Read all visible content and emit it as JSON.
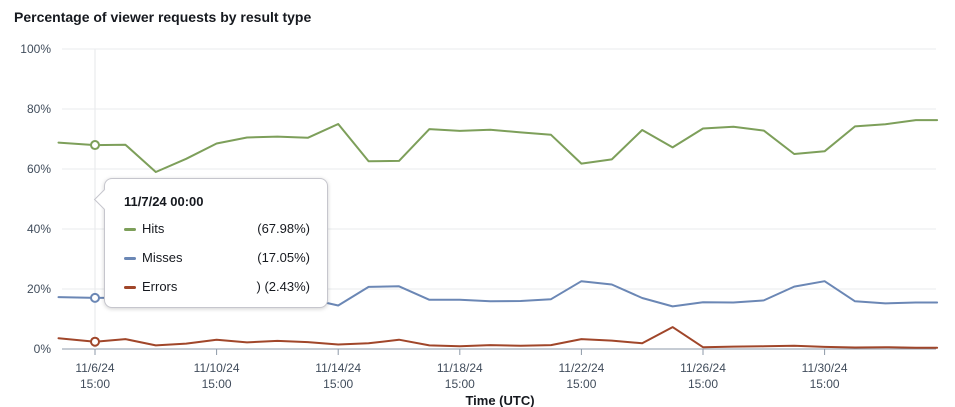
{
  "title": "Percentage of viewer requests by result type",
  "chart_data": {
    "type": "line",
    "xlabel": "Time (UTC)",
    "ylabel": "",
    "ylim": [
      0,
      100
    ],
    "yticks": [
      "0%",
      "20%",
      "40%",
      "60%",
      "80%",
      "100%"
    ],
    "ytick_values": [
      0,
      20,
      40,
      60,
      80,
      100
    ],
    "xticks": [
      {
        "date": "11/6/24",
        "time": "15:00",
        "day": 0
      },
      {
        "date": "11/10/24",
        "time": "15:00",
        "day": 4
      },
      {
        "date": "11/14/24",
        "time": "15:00",
        "day": 8
      },
      {
        "date": "11/18/24",
        "time": "15:00",
        "day": 12
      },
      {
        "date": "11/22/24",
        "time": "15:00",
        "day": 16
      },
      {
        "date": "11/26/24",
        "time": "15:00",
        "day": 20
      },
      {
        "date": "11/30/24",
        "time": "15:00",
        "day": 24
      }
    ],
    "grid": true,
    "x_days": [
      -1.2,
      0,
      1,
      2,
      3,
      4,
      5,
      6,
      7,
      8,
      9,
      10,
      11,
      12,
      13,
      14,
      15,
      16,
      17,
      18,
      19,
      20,
      21,
      22,
      23,
      24,
      25,
      26,
      27,
      27.7
    ],
    "series": [
      {
        "name": "Hits",
        "color": "#7d9f5a",
        "values": [
          68.8,
          67.98,
          68.1,
          59,
          63.4,
          68.5,
          70.5,
          70.8,
          70.4,
          75,
          62.6,
          62.7,
          73.3,
          72.7,
          73.1,
          72.2,
          71.4,
          61.8,
          63.2,
          73,
          67.2,
          73.5,
          74.1,
          72.8,
          65,
          65.9,
          74.2,
          74.9,
          76.3,
          76.3
        ]
      },
      {
        "name": "Misses",
        "color": "#6b87b5",
        "values": [
          17.3,
          17.05,
          17.1,
          16.8,
          16.8,
          16.9,
          16.9,
          17.4,
          16.8,
          14.5,
          20.7,
          20.9,
          16.4,
          16.4,
          15.9,
          16,
          16.6,
          22.6,
          21.5,
          17,
          14.2,
          15.6,
          15.5,
          16.2,
          20.8,
          22.6,
          15.9,
          15.2,
          15.5,
          15.5
        ]
      },
      {
        "name": "Errors",
        "color": "#a0462a",
        "values": [
          3.6,
          2.43,
          3.3,
          1.2,
          1.8,
          3.1,
          2.2,
          2.7,
          2.3,
          1.5,
          1.9,
          3.1,
          1.2,
          0.9,
          1.3,
          1.1,
          1.3,
          3.3,
          2.8,
          1.9,
          7.3,
          0.6,
          0.8,
          0.9,
          1.1,
          0.7,
          0.5,
          0.6,
          0.4,
          0.4
        ]
      }
    ],
    "highlight_day": 0
  },
  "tooltip": {
    "title": "11/7/24 00:00",
    "rows": [
      {
        "label": "Hits",
        "value": "(67.98%)",
        "color": "#7d9f5a"
      },
      {
        "label": "Misses",
        "value": "(17.05%)",
        "color": "#6b87b5"
      },
      {
        "label": "Errors",
        "value": ") (2.43%)",
        "color": "#a0462a"
      }
    ]
  }
}
